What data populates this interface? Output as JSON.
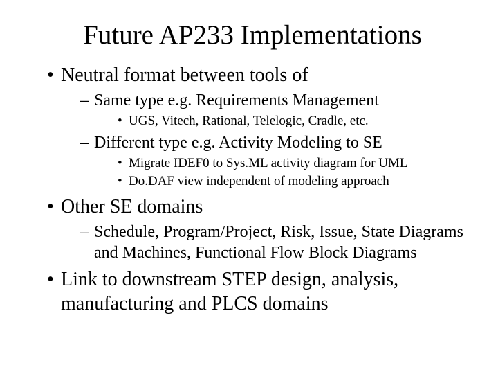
{
  "title": "Future AP233 Implementations",
  "bullets": {
    "b1": "Neutral format between tools of",
    "b1_1": "Same type e.g. Requirements Management",
    "b1_1_1": "UGS, Vitech, Rational, Telelogic, Cradle, etc.",
    "b1_2": "Different type e.g.  Activity Modeling to SE",
    "b1_2_1": "Migrate IDEF0 to Sys.ML activity diagram for UML",
    "b1_2_2": "Do.DAF view independent of modeling approach",
    "b2": "Other SE domains",
    "b2_1": "Schedule, Program/Project, Risk, Issue, State Diagrams and Machines, Functional Flow Block Diagrams",
    "b3": "Link to downstream STEP design, analysis, manufacturing and PLCS domains"
  },
  "style": {
    "background_color": "#ffffff",
    "text_color": "#000000",
    "font_family": "Times New Roman",
    "title_fontsize": 39,
    "lvl1_fontsize": 28,
    "lvl2_fontsize": 24,
    "lvl3_fontsize": 19,
    "lvl1_marker": "•",
    "lvl2_marker": "–",
    "lvl3_marker": "•"
  }
}
